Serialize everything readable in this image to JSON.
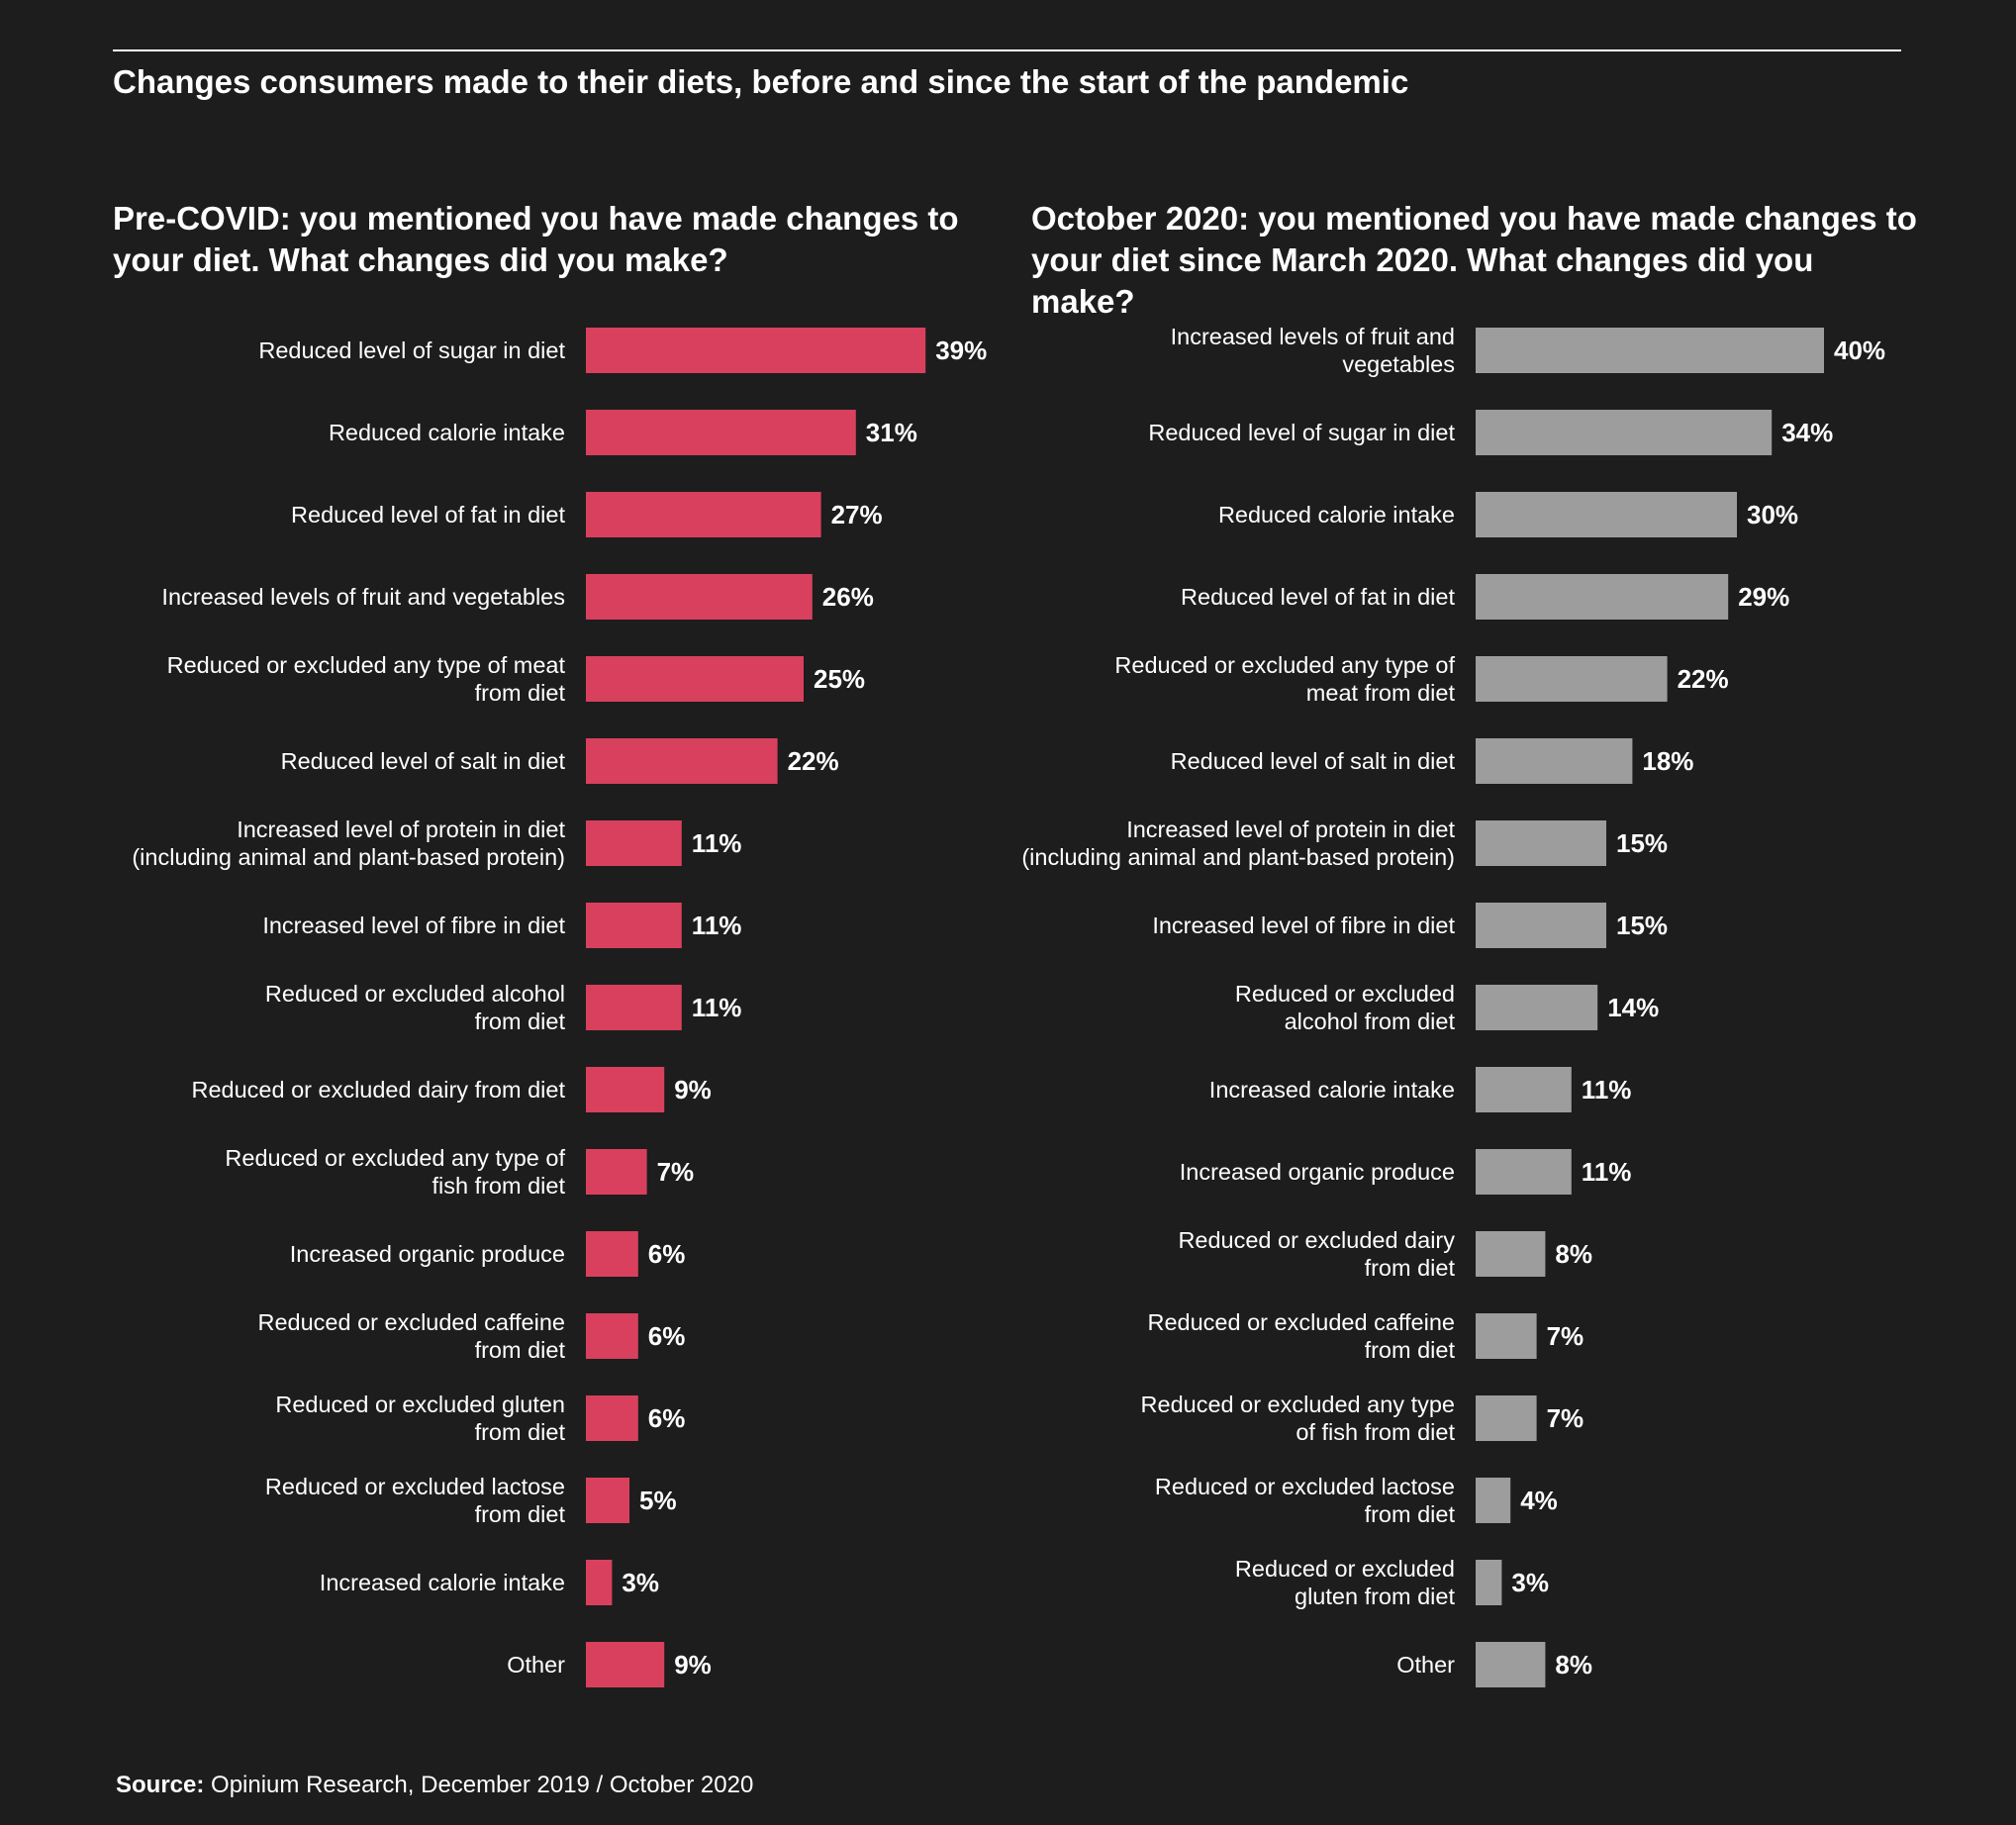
{
  "title": "Changes consumers made to their diets, before and since the start of the pandemic",
  "source": {
    "label": "Source:",
    "text": "Opinium Research, December 2019 / October 2020"
  },
  "colors": {
    "background": "#1d1d1d",
    "pre_covid_bar": "#d9405e",
    "october_bar": "#9d9d9d",
    "text": "#ffffff"
  },
  "chart_data": [
    {
      "type": "bar",
      "orientation": "horizontal",
      "title": "Pre-COVID: you mentioned you have made changes to your diet. What changes did you make?",
      "value_suffix": "%",
      "categories": [
        [
          "Reduced level of sugar in diet"
        ],
        [
          "Reduced calorie intake"
        ],
        [
          "Reduced level of fat in diet"
        ],
        [
          "Increased levels of fruit and vegetables"
        ],
        [
          "Reduced or excluded any type of meat",
          "from diet"
        ],
        [
          "Reduced level of salt in diet"
        ],
        [
          "Increased level of protein in diet",
          "(including animal and plant-based protein)"
        ],
        [
          "Increased level of fibre in diet"
        ],
        [
          "Reduced or excluded alcohol",
          "from diet"
        ],
        [
          "Reduced or excluded dairy from diet"
        ],
        [
          "Reduced or excluded any type of",
          "fish from diet"
        ],
        [
          "Increased organic produce"
        ],
        [
          "Reduced or excluded caffeine",
          "from diet"
        ],
        [
          "Reduced or excluded gluten",
          "from diet"
        ],
        [
          "Reduced or excluded lactose",
          "from diet"
        ],
        [
          "Increased calorie intake"
        ],
        [
          "Other"
        ]
      ],
      "values": [
        39,
        31,
        27,
        26,
        25,
        22,
        11,
        11,
        11,
        9,
        7,
        6,
        6,
        6,
        5,
        3,
        9
      ],
      "xlim": [
        0,
        40
      ],
      "color": "#d9405e"
    },
    {
      "type": "bar",
      "orientation": "horizontal",
      "title": "October 2020: you mentioned you have made changes to your diet since March 2020. What changes did you make?",
      "value_suffix": "%",
      "categories": [
        [
          "Increased levels of fruit and",
          "vegetables"
        ],
        [
          "Reduced level of sugar in diet"
        ],
        [
          "Reduced calorie intake"
        ],
        [
          "Reduced level of fat in diet"
        ],
        [
          "Reduced or excluded any type of",
          "meat from diet"
        ],
        [
          "Reduced level of salt in diet"
        ],
        [
          "Increased level of protein in diet",
          "(including animal and plant-based protein)"
        ],
        [
          "Increased level of fibre in diet"
        ],
        [
          "Reduced or excluded",
          "alcohol from diet"
        ],
        [
          "Increased calorie intake"
        ],
        [
          "Increased organic produce"
        ],
        [
          "Reduced or excluded dairy",
          "from diet"
        ],
        [
          "Reduced or excluded caffeine",
          "from diet"
        ],
        [
          "Reduced or excluded any type",
          "of fish from diet"
        ],
        [
          "Reduced or excluded lactose",
          "from diet"
        ],
        [
          "Reduced or excluded",
          "gluten from diet"
        ],
        [
          "Other"
        ]
      ],
      "values": [
        40,
        34,
        30,
        29,
        22,
        18,
        15,
        15,
        14,
        11,
        11,
        8,
        7,
        7,
        4,
        3,
        8
      ],
      "xlim": [
        0,
        40
      ],
      "color": "#9d9d9d"
    }
  ]
}
